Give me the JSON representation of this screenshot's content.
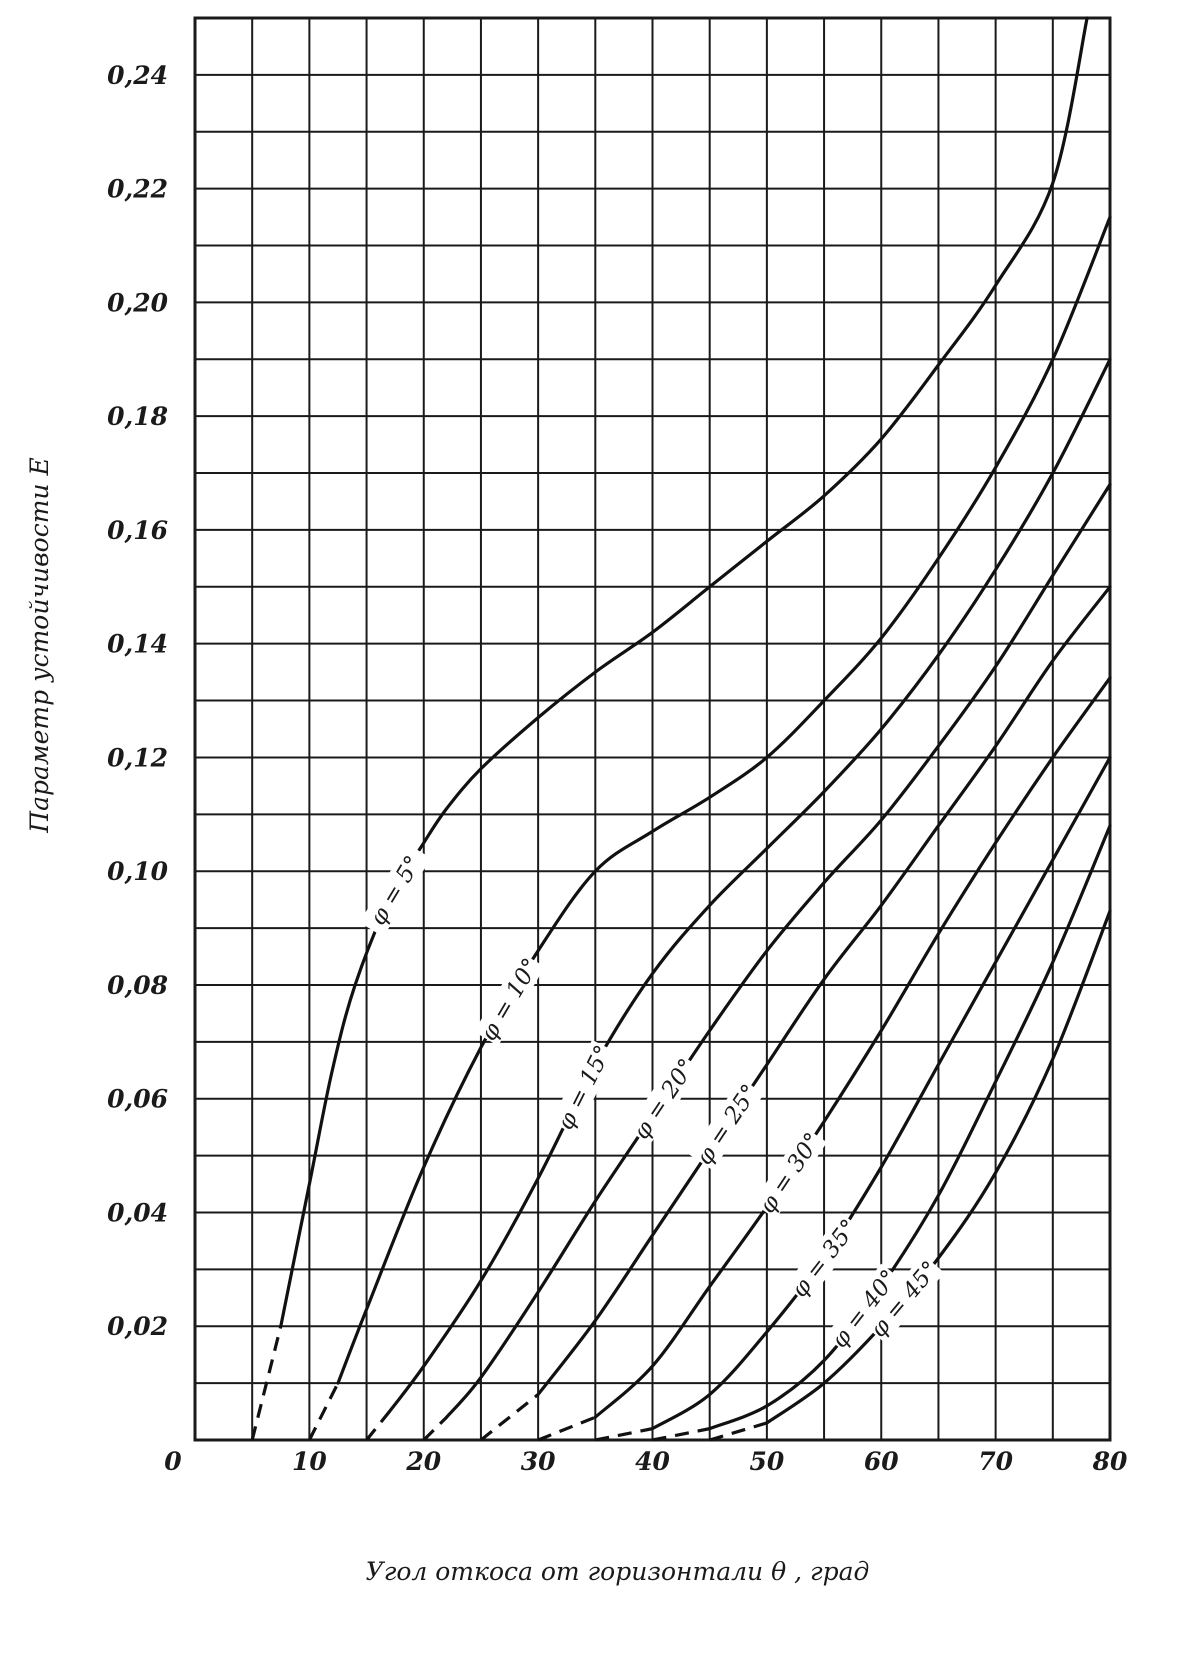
{
  "chart_data": {
    "type": "line",
    "title": "",
    "xlabel": "Угол откоса от горизонтали θ , град",
    "ylabel": "Параметр устойчивости E",
    "xlim": [
      0,
      80
    ],
    "ylim": [
      0,
      0.25
    ],
    "x_ticks": [
      "0",
      "10",
      "20",
      "30",
      "40",
      "50",
      "60",
      "70",
      "80"
    ],
    "y_ticks": [
      "0,02",
      "0,04",
      "0,06",
      "0,08",
      "0,10",
      "0,12",
      "0,14",
      "0,16",
      "0,18",
      "0,20",
      "0,22",
      "0,24"
    ],
    "y_tick_values": [
      0.02,
      0.04,
      0.06,
      0.08,
      0.1,
      0.12,
      0.14,
      0.16,
      0.18,
      0.2,
      0.22,
      0.24
    ],
    "grid": true,
    "series": [
      {
        "name": "φ = 5°",
        "dashed_start": [
          5,
          0
        ],
        "points": [
          [
            7.5,
            0.02
          ],
          [
            10,
            0.045
          ],
          [
            12,
            0.065
          ],
          [
            14,
            0.08
          ],
          [
            17,
            0.095
          ],
          [
            20,
            0.105
          ],
          [
            22,
            0.111
          ],
          [
            25,
            0.118
          ],
          [
            30,
            0.127
          ],
          [
            35,
            0.135
          ],
          [
            40,
            0.142
          ],
          [
            45,
            0.15
          ],
          [
            50,
            0.158
          ],
          [
            55,
            0.166
          ],
          [
            60,
            0.176
          ],
          [
            65,
            0.189
          ],
          [
            70,
            0.203
          ],
          [
            75,
            0.221
          ],
          [
            78,
            0.25
          ]
        ]
      },
      {
        "name": "φ = 10°",
        "dashed_start": [
          10,
          0
        ],
        "points": [
          [
            12.5,
            0.01
          ],
          [
            15,
            0.023
          ],
          [
            20,
            0.048
          ],
          [
            25,
            0.069
          ],
          [
            30,
            0.086
          ],
          [
            35,
            0.1
          ],
          [
            40,
            0.107
          ],
          [
            45,
            0.113
          ],
          [
            50,
            0.12
          ],
          [
            55,
            0.13
          ],
          [
            60,
            0.141
          ],
          [
            65,
            0.155
          ],
          [
            70,
            0.171
          ],
          [
            75,
            0.19
          ],
          [
            80,
            0.215
          ]
        ]
      },
      {
        "name": "φ = 15°",
        "dashed_start": [
          15,
          0
        ],
        "points": [
          [
            17,
            0.005
          ],
          [
            20,
            0.013
          ],
          [
            25,
            0.028
          ],
          [
            30,
            0.046
          ],
          [
            35,
            0.066
          ],
          [
            40,
            0.082
          ],
          [
            45,
            0.094
          ],
          [
            50,
            0.104
          ],
          [
            55,
            0.114
          ],
          [
            60,
            0.125
          ],
          [
            65,
            0.138
          ],
          [
            70,
            0.153
          ],
          [
            75,
            0.17
          ],
          [
            80,
            0.19
          ]
        ]
      },
      {
        "name": "φ = 20°",
        "dashed_start": [
          20,
          0
        ],
        "points": [
          [
            22,
            0.004
          ],
          [
            25,
            0.011
          ],
          [
            30,
            0.026
          ],
          [
            35,
            0.042
          ],
          [
            40,
            0.057
          ],
          [
            45,
            0.072
          ],
          [
            50,
            0.086
          ],
          [
            55,
            0.098
          ],
          [
            60,
            0.109
          ],
          [
            65,
            0.122
          ],
          [
            70,
            0.136
          ],
          [
            75,
            0.152
          ],
          [
            80,
            0.168
          ]
        ]
      },
      {
        "name": "φ = 25°",
        "dashed_start": [
          25,
          0
        ],
        "points": [
          [
            30,
            0.008
          ],
          [
            35,
            0.021
          ],
          [
            40,
            0.036
          ],
          [
            45,
            0.051
          ],
          [
            50,
            0.066
          ],
          [
            55,
            0.081
          ],
          [
            60,
            0.094
          ],
          [
            65,
            0.108
          ],
          [
            70,
            0.122
          ],
          [
            75,
            0.137
          ],
          [
            80,
            0.15
          ]
        ]
      },
      {
        "name": "φ = 30°",
        "dashed_start": [
          30,
          0
        ],
        "points": [
          [
            35,
            0.004
          ],
          [
            40,
            0.013
          ],
          [
            45,
            0.027
          ],
          [
            50,
            0.041
          ],
          [
            55,
            0.056
          ],
          [
            60,
            0.072
          ],
          [
            65,
            0.089
          ],
          [
            70,
            0.105
          ],
          [
            75,
            0.12
          ],
          [
            80,
            0.134
          ]
        ]
      },
      {
        "name": "φ = 35°",
        "dashed_start": [
          35,
          0
        ],
        "points": [
          [
            40,
            0.002
          ],
          [
            45,
            0.008
          ],
          [
            50,
            0.019
          ],
          [
            55,
            0.032
          ],
          [
            60,
            0.048
          ],
          [
            65,
            0.066
          ],
          [
            70,
            0.084
          ],
          [
            75,
            0.102
          ],
          [
            80,
            0.12
          ]
        ]
      },
      {
        "name": "φ = 40°",
        "dashed_start": [
          40,
          0
        ],
        "points": [
          [
            45,
            0.002
          ],
          [
            50,
            0.006
          ],
          [
            55,
            0.014
          ],
          [
            60,
            0.027
          ],
          [
            65,
            0.043
          ],
          [
            70,
            0.063
          ],
          [
            75,
            0.084
          ],
          [
            80,
            0.108
          ]
        ]
      },
      {
        "name": "φ = 45°",
        "dashed_start": [
          45,
          0
        ],
        "points": [
          [
            50,
            0.003
          ],
          [
            55,
            0.01
          ],
          [
            60,
            0.02
          ],
          [
            65,
            0.032
          ],
          [
            70,
            0.047
          ],
          [
            75,
            0.067
          ],
          [
            80,
            0.093
          ]
        ]
      }
    ]
  }
}
